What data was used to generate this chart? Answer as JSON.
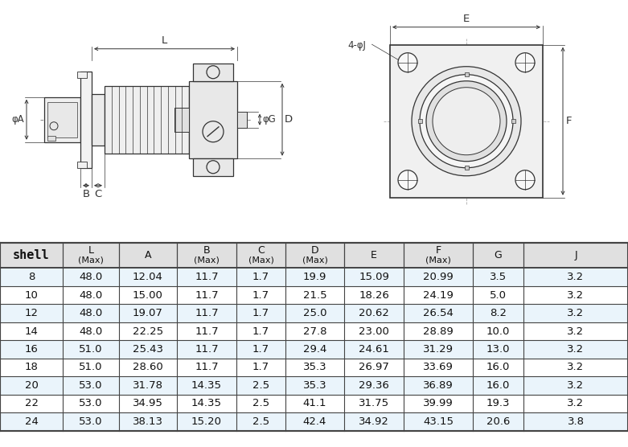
{
  "rows": [
    [
      "8",
      "48.0",
      "12.04",
      "11.7",
      "1.7",
      "19.9",
      "15.09",
      "20.99",
      "3.5",
      "3.2"
    ],
    [
      "10",
      "48.0",
      "15.00",
      "11.7",
      "1.7",
      "21.5",
      "18.26",
      "24.19",
      "5.0",
      "3.2"
    ],
    [
      "12",
      "48.0",
      "19.07",
      "11.7",
      "1.7",
      "25.0",
      "20.62",
      "26.54",
      "8.2",
      "3.2"
    ],
    [
      "14",
      "48.0",
      "22.25",
      "11.7",
      "1.7",
      "27.8",
      "23.00",
      "28.89",
      "10.0",
      "3.2"
    ],
    [
      "16",
      "51.0",
      "25.43",
      "11.7",
      "1.7",
      "29.4",
      "24.61",
      "31.29",
      "13.0",
      "3.2"
    ],
    [
      "18",
      "51.0",
      "28.60",
      "11.7",
      "1.7",
      "35.3",
      "26.97",
      "33.69",
      "16.0",
      "3.2"
    ],
    [
      "20",
      "53.0",
      "31.78",
      "14.35",
      "2.5",
      "35.3",
      "29.36",
      "36.89",
      "16.0",
      "3.2"
    ],
    [
      "22",
      "53.0",
      "34.95",
      "14.35",
      "2.5",
      "41.1",
      "31.75",
      "39.99",
      "19.3",
      "3.2"
    ],
    [
      "24",
      "53.0",
      "38.13",
      "15.20",
      "2.5",
      "42.4",
      "34.92",
      "43.15",
      "20.6",
      "3.8"
    ]
  ],
  "headers_main": [
    "shell",
    "L",
    "A",
    "B",
    "C",
    "D",
    "E",
    "F",
    "G",
    "J"
  ],
  "headers_sub": [
    "",
    "(Max)",
    "",
    "(Max)",
    "(Max)",
    "(Max)",
    "",
    "(Max)",
    "",
    ""
  ],
  "bg_color": "#ffffff",
  "header_bg": "#e0e0e0",
  "row_bg_light": "#eaf4fb",
  "border_color": "#444444",
  "text_color": "#111111",
  "line_color": "#333333",
  "dim_color": "#333333"
}
